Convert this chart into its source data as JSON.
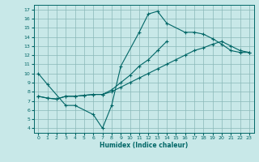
{
  "xlabel": "Humidex (Indice chaleur)",
  "background_color": "#c8e8e8",
  "grid_color": "#8ab8b8",
  "line_color": "#006666",
  "xlim": [
    -0.5,
    23.5
  ],
  "ylim": [
    3.5,
    17.5
  ],
  "xticks": [
    0,
    1,
    2,
    3,
    4,
    5,
    6,
    7,
    8,
    9,
    10,
    11,
    12,
    13,
    14,
    15,
    16,
    17,
    18,
    19,
    20,
    21,
    22,
    23
  ],
  "yticks": [
    4,
    5,
    6,
    7,
    8,
    9,
    10,
    11,
    12,
    13,
    14,
    15,
    16,
    17
  ],
  "curve1_x": [
    0,
    1,
    3,
    4,
    6,
    7,
    8,
    9,
    11,
    12,
    13,
    14,
    16,
    17,
    18,
    19,
    20,
    21,
    22,
    23
  ],
  "curve1_y": [
    10,
    8.8,
    6.5,
    6.5,
    5.5,
    4.0,
    6.5,
    10.8,
    14.5,
    16.5,
    16.8,
    15.5,
    14.5,
    14.5,
    14.3,
    13.8,
    13.2,
    12.5,
    12.3,
    12.3
  ],
  "curve2_x": [
    0,
    1,
    2,
    3,
    4,
    5,
    6,
    7,
    8,
    9,
    10,
    11,
    12,
    13,
    14,
    15,
    16,
    17,
    18,
    19,
    20,
    21,
    22,
    23
  ],
  "curve2_y": [
    7.5,
    7.3,
    7.2,
    7.5,
    7.5,
    7.6,
    7.7,
    7.7,
    8.0,
    8.5,
    9.0,
    9.5,
    10.0,
    10.5,
    11.0,
    11.5,
    12.0,
    12.5,
    12.8,
    13.2,
    13.5,
    13.0,
    12.5,
    12.3
  ],
  "curve3_x": [
    0,
    1,
    2,
    3,
    4,
    5,
    6,
    7,
    8,
    9,
    10,
    11,
    12,
    13,
    14
  ],
  "curve3_y": [
    7.5,
    7.3,
    7.2,
    7.5,
    7.5,
    7.6,
    7.7,
    7.7,
    8.2,
    9.0,
    9.8,
    10.8,
    11.5,
    12.5,
    13.5
  ]
}
